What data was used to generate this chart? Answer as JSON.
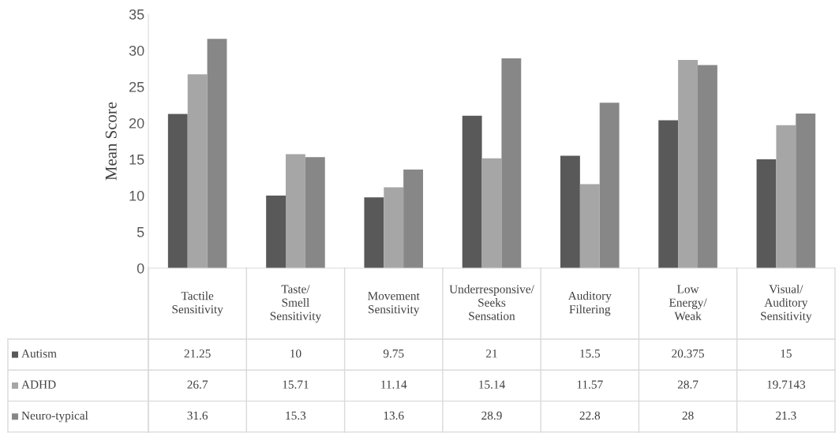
{
  "chart_data": {
    "type": "bar",
    "ylabel": "Mean Score",
    "categories": [
      "Tactile Sensitivity",
      "Taste/Smell Sensitivity",
      "Movement Sensitivity",
      "Underresponsive/Seeks Sensation",
      "Auditory Filtering",
      "Low Energy/Weak",
      "Visual/Auditory Sensitivity"
    ],
    "series": [
      {
        "name": "Autism",
        "color": "#595959",
        "values": [
          21.25,
          10,
          9.75,
          21,
          15.5,
          20.375,
          15
        ]
      },
      {
        "name": "ADHD",
        "color": "#a6a6a6",
        "values": [
          26.7,
          15.71,
          11.14,
          15.14,
          11.57,
          28.7,
          19.7143
        ]
      },
      {
        "name": "Neuro-typical",
        "color": "#878787",
        "values": [
          31.6,
          15.3,
          13.6,
          28.9,
          22.8,
          28,
          21.3
        ]
      }
    ],
    "ylim": [
      0,
      35
    ],
    "yticks": [
      0,
      5,
      10,
      15,
      20,
      25,
      30,
      35
    ],
    "grid": false,
    "legend": "bottom",
    "data_labels": true
  }
}
